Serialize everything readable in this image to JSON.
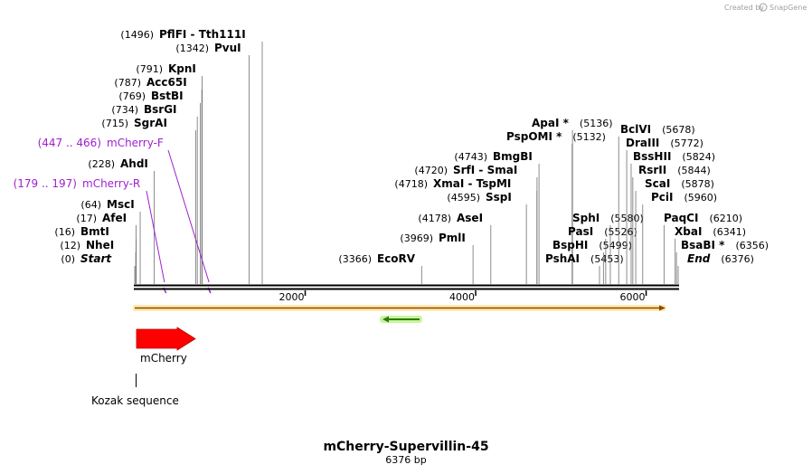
{
  "credit": {
    "prefix": "Created by",
    "brand": "SnapGene"
  },
  "map": {
    "title": "mCherry-Supervillin-45",
    "length_label": "6376 bp",
    "total_bp": 6376,
    "ruler_ticks": [
      "2000",
      "4000",
      "6000"
    ]
  },
  "sites": [
    {
      "pos": "(0)",
      "name": "Start",
      "bp": 0,
      "italic": true
    },
    {
      "pos": "(12)",
      "name": "NheI",
      "bp": 12
    },
    {
      "pos": "(16)",
      "name": "BmtI",
      "bp": 16
    },
    {
      "pos": "(17)",
      "name": "AfeI",
      "bp": 17
    },
    {
      "pos": "(64)",
      "name": "MscI",
      "bp": 64
    },
    {
      "pos": "(228)",
      "name": "AhdI",
      "bp": 228
    },
    {
      "pos": "(715)",
      "name": "SgrAI",
      "bp": 715
    },
    {
      "pos": "(734)",
      "name": "BsrGI",
      "bp": 734
    },
    {
      "pos": "(769)",
      "name": "BstBI",
      "bp": 769
    },
    {
      "pos": "(787)",
      "name": "Acc65I",
      "bp": 787
    },
    {
      "pos": "(791)",
      "name": "KpnI",
      "bp": 791
    },
    {
      "pos": "(1342)",
      "name": "PvuI",
      "bp": 1342
    },
    {
      "pos": "(1496)",
      "name": "PflFI  - Tth111I",
      "bp": 1496
    },
    {
      "pos": "(3366)",
      "name": "EcoRV",
      "bp": 3366
    },
    {
      "pos": "(3969)",
      "name": "PmlI",
      "bp": 3969
    },
    {
      "pos": "(4178)",
      "name": "AseI",
      "bp": 4178
    },
    {
      "pos": "(4595)",
      "name": "SspI",
      "bp": 4595
    },
    {
      "pos": "(4718)",
      "name": "XmaI  - TspMI",
      "bp": 4718
    },
    {
      "pos": "(4720)",
      "name": "SrfI  - SmaI",
      "bp": 4720
    },
    {
      "pos": "(4743)",
      "name": "BmgBI",
      "bp": 4743
    },
    {
      "pos": "(5132)",
      "name": "PspOMI *",
      "bp": 5132
    },
    {
      "pos": "(5136)",
      "name": "ApaI *",
      "bp": 5136
    },
    {
      "pos": "(5453)",
      "name": "PshAI",
      "bp": 5453
    },
    {
      "pos": "(5499)",
      "name": "BspHI",
      "bp": 5499
    },
    {
      "pos": "(5526)",
      "name": "PasI",
      "bp": 5526
    },
    {
      "pos": "(5580)",
      "name": "SphI",
      "bp": 5580
    },
    {
      "pos": "(5678)",
      "name": "BclVI",
      "bp": 5678
    },
    {
      "pos": "(5772)",
      "name": "DraIII",
      "bp": 5772
    },
    {
      "pos": "(5824)",
      "name": "BssHII",
      "bp": 5824
    },
    {
      "pos": "(5844)",
      "name": "RsrII",
      "bp": 5844
    },
    {
      "pos": "(5878)",
      "name": "ScaI",
      "bp": 5878
    },
    {
      "pos": "(5960)",
      "name": "PciI",
      "bp": 5960
    },
    {
      "pos": "(6210)",
      "name": "PaqCI",
      "bp": 6210
    },
    {
      "pos": "(6341)",
      "name": "XbaI",
      "bp": 6341
    },
    {
      "pos": "(6356)",
      "name": "BsaBI *",
      "bp": 6356
    },
    {
      "pos": "(6376)",
      "name": "End",
      "bp": 6376,
      "italic": true
    }
  ],
  "primers": [
    {
      "pos": "(179 .. 197)",
      "name": "mCherry-R",
      "start": 179,
      "end": 197
    },
    {
      "pos": "(447 .. 466)",
      "name": "mCherry-F",
      "start": 447,
      "end": 466
    }
  ],
  "features": [
    {
      "name": "mCherry",
      "type": "cds",
      "color": "#ff0000"
    },
    {
      "name": "Kozak sequence",
      "type": "regulatory",
      "color": "#000000"
    }
  ],
  "colors": {
    "backbone": "#000000",
    "primer": "#a020d0",
    "orange_bar": "#f5a623",
    "green_arrow": "#2e7d00",
    "green_glow": "#b6f08a",
    "cds": "#ff0000"
  }
}
